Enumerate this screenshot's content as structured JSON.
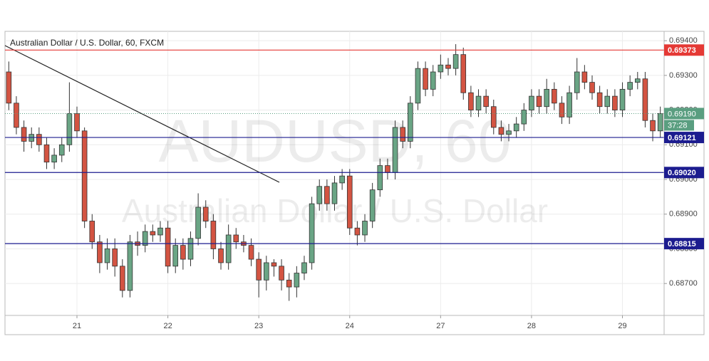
{
  "chart_data": {
    "type": "candlestick",
    "title": "Australian Dollar / U.S. Dollar, 60, FXCM",
    "watermark": [
      "AUDUSD, 60",
      "Australian Dollar / U.S. Dollar"
    ],
    "categories": [
      null,
      null,
      null,
      null,
      null,
      null,
      null,
      null,
      null,
      "21",
      null,
      null,
      null,
      null,
      null,
      null,
      null,
      null,
      null,
      null,
      null,
      "22",
      null,
      null,
      null,
      null,
      null,
      null,
      null,
      null,
      null,
      null,
      null,
      "23",
      null,
      null,
      null,
      null,
      null,
      null,
      null,
      null,
      null,
      null,
      null,
      "24",
      null,
      null,
      null,
      null,
      null,
      null,
      null,
      null,
      null,
      null,
      null,
      "27",
      null,
      null,
      null,
      null,
      null,
      null,
      null,
      null,
      null,
      null,
      null,
      "28",
      null,
      null,
      null,
      null,
      null,
      null,
      null,
      null,
      null,
      null,
      null,
      "29",
      null,
      null,
      null,
      null,
      null
    ],
    "open": [
      0.6931,
      0.6922,
      0.6915,
      0.6911,
      0.6913,
      0.691,
      0.6905,
      0.6907,
      0.691,
      0.6919,
      0.6914,
      0.6888,
      0.6882,
      0.6876,
      0.688,
      0.6875,
      0.6868,
      0.6882,
      0.6881,
      0.6885,
      0.6884,
      0.6886,
      0.6875,
      0.6881,
      0.6877,
      0.6883,
      0.6892,
      0.6888,
      0.688,
      0.6876,
      0.6884,
      0.6882,
      0.6881,
      0.6877,
      0.6871,
      0.6876,
      0.6875,
      0.6871,
      0.6869,
      0.6873,
      0.6876,
      0.6893,
      0.6898,
      0.6893,
      0.6899,
      0.6901,
      0.6886,
      0.6884,
      0.6888,
      0.6897,
      0.6904,
      0.6902,
      0.6915,
      0.6911,
      0.6922,
      0.6932,
      0.6926,
      0.6931,
      0.6933,
      0.6932,
      0.6936,
      0.6925,
      0.692,
      0.6924,
      0.6921,
      0.6915,
      0.6913,
      0.6914,
      0.6916,
      0.692,
      0.6924,
      0.6921,
      0.6926,
      0.6922,
      0.6918,
      0.6925,
      0.6931,
      0.6928,
      0.6925,
      0.6921,
      0.6924,
      0.692,
      0.6926,
      0.6928,
      0.6929,
      0.6917,
      0.6914
    ],
    "high": [
      0.6934,
      0.6924,
      0.6917,
      0.6915,
      0.6915,
      0.6912,
      0.6909,
      0.6912,
      0.6928,
      0.6921,
      0.6915,
      0.689,
      0.6884,
      0.6883,
      0.6883,
      0.6877,
      0.6884,
      0.6885,
      0.6887,
      0.6887,
      0.6888,
      0.6888,
      0.6883,
      0.6883,
      0.6885,
      0.6896,
      0.6894,
      0.689,
      0.6882,
      0.6887,
      0.6886,
      0.6884,
      0.6883,
      0.6879,
      0.6878,
      0.6877,
      0.6877,
      0.6873,
      0.6875,
      0.6878,
      0.6895,
      0.69,
      0.69,
      0.6901,
      0.6903,
      0.6903,
      0.6888,
      0.689,
      0.6899,
      0.6906,
      0.6906,
      0.6917,
      0.6917,
      0.6924,
      0.6934,
      0.6934,
      0.6933,
      0.6936,
      0.6935,
      0.6939,
      0.6938,
      0.6927,
      0.6926,
      0.6926,
      0.6923,
      0.6917,
      0.6916,
      0.6918,
      0.6922,
      0.6926,
      0.6926,
      0.6929,
      0.6928,
      0.6924,
      0.6927,
      0.6935,
      0.6933,
      0.693,
      0.6927,
      0.6926,
      0.6926,
      0.6928,
      0.693,
      0.6931,
      0.6931,
      0.6919,
      0.6921
    ],
    "low": [
      0.692,
      0.6913,
      0.6908,
      0.6909,
      0.6908,
      0.6903,
      0.6903,
      0.6905,
      0.6908,
      0.6912,
      0.6886,
      0.688,
      0.6873,
      0.6874,
      0.6872,
      0.6866,
      0.6866,
      0.6878,
      0.6879,
      0.6882,
      0.6882,
      0.6873,
      0.6873,
      0.6874,
      0.6875,
      0.6881,
      0.6886,
      0.6877,
      0.6874,
      0.6874,
      0.688,
      0.6879,
      0.6875,
      0.6866,
      0.6868,
      0.6872,
      0.6868,
      0.6865,
      0.6866,
      0.6871,
      0.6874,
      0.6891,
      0.6891,
      0.6891,
      0.6897,
      0.6884,
      0.6881,
      0.6882,
      0.6886,
      0.6895,
      0.69,
      0.69,
      0.6909,
      0.6909,
      0.692,
      0.6924,
      0.6924,
      0.6929,
      0.693,
      0.693,
      0.6923,
      0.6918,
      0.6918,
      0.6919,
      0.6913,
      0.6911,
      0.6911,
      0.6912,
      0.6914,
      0.6918,
      0.6919,
      0.6919,
      0.692,
      0.6916,
      0.6916,
      0.6923,
      0.6926,
      0.6923,
      0.6919,
      0.6919,
      0.6918,
      0.6918,
      0.6924,
      0.6926,
      0.6915,
      0.6911,
      0.6912
    ],
    "close": [
      0.6922,
      0.6915,
      0.6911,
      0.6913,
      0.691,
      0.6905,
      0.6907,
      0.691,
      0.6919,
      0.6914,
      0.6888,
      0.6882,
      0.6876,
      0.688,
      0.6875,
      0.6868,
      0.6882,
      0.6881,
      0.6885,
      0.6884,
      0.6886,
      0.6875,
      0.6881,
      0.6877,
      0.6883,
      0.6892,
      0.6888,
      0.688,
      0.6876,
      0.6884,
      0.6882,
      0.6881,
      0.6877,
      0.6871,
      0.6876,
      0.6875,
      0.6871,
      0.6869,
      0.6873,
      0.6876,
      0.6893,
      0.6898,
      0.6893,
      0.6899,
      0.6901,
      0.6886,
      0.6884,
      0.6888,
      0.6897,
      0.6904,
      0.6902,
      0.6915,
      0.6911,
      0.6922,
      0.6932,
      0.6926,
      0.6931,
      0.6933,
      0.6932,
      0.6936,
      0.6925,
      0.692,
      0.6924,
      0.6921,
      0.6915,
      0.6913,
      0.6914,
      0.6916,
      0.692,
      0.6924,
      0.6921,
      0.6926,
      0.6922,
      0.6918,
      0.6925,
      0.6931,
      0.6928,
      0.6925,
      0.6921,
      0.6924,
      0.692,
      0.6926,
      0.6928,
      0.6929,
      0.6917,
      0.6914,
      0.6919
    ],
    "up_color": "#6aa585",
    "down_color": "#d35442",
    "ylim": [
      0.68608,
      0.69427
    ],
    "yticks": [
      {
        "value": 0.694,
        "label": "0.69400"
      },
      {
        "value": 0.693,
        "label": "0.69300"
      },
      {
        "value": 0.692,
        "label": "0.69200"
      },
      {
        "value": 0.691,
        "label": "0.69100"
      },
      {
        "value": 0.69,
        "label": "0.69000"
      },
      {
        "value": 0.689,
        "label": "0.68900"
      },
      {
        "value": 0.688,
        "label": "0.68800"
      },
      {
        "value": 0.687,
        "label": "0.68700"
      }
    ],
    "grid": true,
    "levels": [
      {
        "price": 0.69373,
        "color": "#e53935"
      },
      {
        "price": 0.69121,
        "color": "#1c1c8f"
      },
      {
        "price": {
          "value": 0.6902,
          "label": "0.69020"
        },
        "color": "#1c1c8f"
      },
      {
        "price": 0.68815,
        "color": "#1c1c8f"
      }
    ],
    "last_price": {
      "value": 0.6919,
      "label": "0.69190"
    },
    "last_price_color": "#5a9e80",
    "countdown": "37:28"
  }
}
